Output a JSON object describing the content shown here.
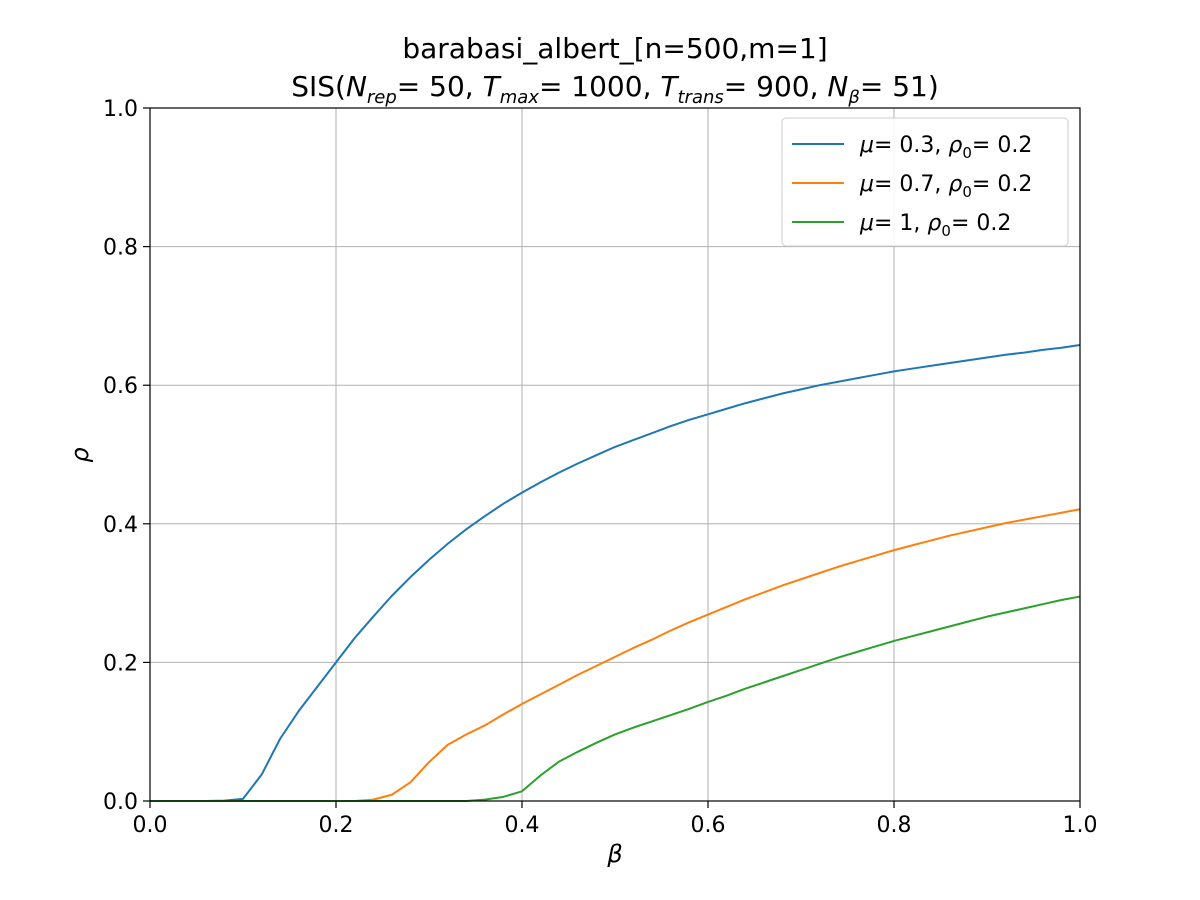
{
  "chart_data": {
    "type": "line",
    "title": "barabasi_albert_[n=500,m=1]",
    "subtitle": {
      "prefix": "SIS(",
      "params": [
        {
          "sym": "N",
          "sub": "rep",
          "value": "= 50"
        },
        {
          "sym": "T",
          "sub": "max",
          "value": "= 1000"
        },
        {
          "sym": "T",
          "sub": "trans",
          "value": "= 900"
        },
        {
          "sym": "N",
          "sub": "β",
          "value": "= 51"
        }
      ],
      "separator": ", ",
      "suffix": ")"
    },
    "xlabel": "β",
    "ylabel": "ρ",
    "xlim": [
      0.0,
      1.0
    ],
    "ylim": [
      0.0,
      1.0
    ],
    "xticks": [
      0.0,
      0.2,
      0.4,
      0.6,
      0.8,
      1.0
    ],
    "yticks": [
      0.0,
      0.2,
      0.4,
      0.6,
      0.8,
      1.0
    ],
    "xtick_labels": [
      "0.0",
      "0.2",
      "0.4",
      "0.6",
      "0.8",
      "1.0"
    ],
    "ytick_labels": [
      "0.0",
      "0.2",
      "0.4",
      "0.6",
      "0.8",
      "1.0"
    ],
    "grid": true,
    "legend_position": "top-right",
    "x": [
      0.0,
      0.02,
      0.04,
      0.06,
      0.08,
      0.1,
      0.12,
      0.14,
      0.16,
      0.18,
      0.2,
      0.22,
      0.24,
      0.26,
      0.28,
      0.3,
      0.32,
      0.34,
      0.36,
      0.38,
      0.4,
      0.42,
      0.44,
      0.46,
      0.48,
      0.5,
      0.52,
      0.54,
      0.56,
      0.58,
      0.6,
      0.62,
      0.64,
      0.66,
      0.68,
      0.7,
      0.72,
      0.74,
      0.76,
      0.78,
      0.8,
      0.82,
      0.84,
      0.86,
      0.88,
      0.9,
      0.92,
      0.94,
      0.96,
      0.98,
      1.0
    ],
    "series": [
      {
        "label": {
          "mu": "0.3",
          "rho0": "0.2"
        },
        "color": "#1f77b4",
        "values": [
          0.0,
          0.0,
          0.0,
          0.0,
          0.0005,
          0.003,
          0.038,
          0.09,
          0.13,
          0.165,
          0.2,
          0.235,
          0.266,
          0.296,
          0.323,
          0.348,
          0.371,
          0.392,
          0.411,
          0.429,
          0.445,
          0.46,
          0.474,
          0.487,
          0.499,
          0.511,
          0.521,
          0.531,
          0.541,
          0.55,
          0.558,
          0.566,
          0.574,
          0.581,
          0.588,
          0.594,
          0.6,
          0.605,
          0.61,
          0.615,
          0.62,
          0.624,
          0.628,
          0.632,
          0.636,
          0.64,
          0.644,
          0.647,
          0.651,
          0.654,
          0.658
        ]
      },
      {
        "label": {
          "mu": "0.7",
          "rho0": "0.2"
        },
        "color": "#ff7f0e",
        "values": [
          0.0,
          0.0,
          0.0,
          0.0,
          0.0,
          0.0,
          0.0,
          0.0,
          0.0,
          0.0,
          0.0,
          0.0,
          0.002,
          0.009,
          0.027,
          0.056,
          0.081,
          0.096,
          0.109,
          0.125,
          0.14,
          0.154,
          0.168,
          0.182,
          0.195,
          0.208,
          0.221,
          0.233,
          0.246,
          0.258,
          0.269,
          0.28,
          0.291,
          0.301,
          0.311,
          0.32,
          0.329,
          0.338,
          0.346,
          0.354,
          0.362,
          0.369,
          0.376,
          0.383,
          0.389,
          0.395,
          0.401,
          0.406,
          0.411,
          0.416,
          0.421
        ]
      },
      {
        "label": {
          "mu": "1",
          "rho0": "0.2"
        },
        "color": "#2ca02c",
        "values": [
          0.0,
          0.0,
          0.0,
          0.0,
          0.0,
          0.0,
          0.0,
          0.0,
          0.0,
          0.0,
          0.0,
          0.0,
          0.0,
          0.0,
          0.0,
          0.0,
          0.0,
          0.0,
          0.002,
          0.006,
          0.014,
          0.037,
          0.057,
          0.071,
          0.084,
          0.096,
          0.106,
          0.115,
          0.124,
          0.133,
          0.143,
          0.152,
          0.162,
          0.171,
          0.18,
          0.189,
          0.198,
          0.207,
          0.215,
          0.223,
          0.231,
          0.238,
          0.245,
          0.252,
          0.259,
          0.266,
          0.272,
          0.278,
          0.284,
          0.29,
          0.295
        ]
      }
    ]
  }
}
